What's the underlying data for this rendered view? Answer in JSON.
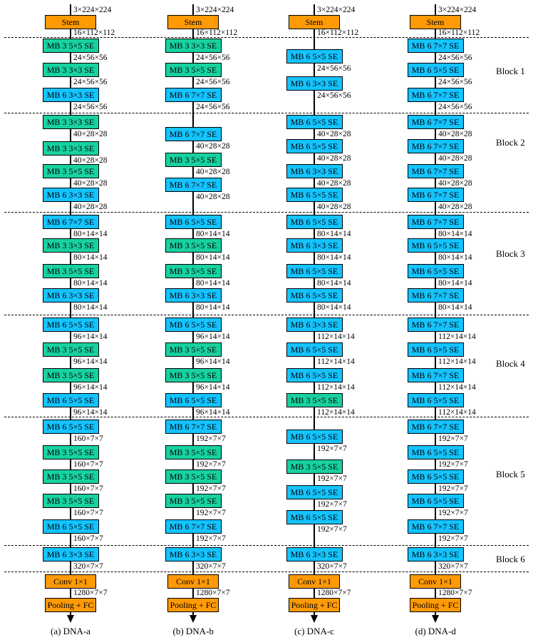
{
  "colors": {
    "stem": "#ff9a05",
    "mb3": "#18d1a0",
    "mb6": "#14c3ff"
  },
  "block_labels": [
    "Block 1",
    "Block 2",
    "Block 3",
    "Block 4",
    "Block 5",
    "Block 6"
  ],
  "columns": [
    {
      "id": "a",
      "caption": "(a) DNA-a",
      "input_dim": "3×224×224",
      "stem": {
        "label": "Stem",
        "dim": "16×112×112"
      },
      "blocks": [
        [
          {
            "label": "MB 3 5×5 SE",
            "dim": "24×56×56"
          },
          {
            "label": "MB 3 3×3 SE",
            "dim": "24×56×56"
          },
          {
            "label": "MB 6 3×3 SE",
            "dim": "24×56×56"
          }
        ],
        [
          {
            "label": "MB 3 3×3 SE",
            "dim": "40×28×28"
          },
          {
            "label": "MB 3 3×3 SE",
            "dim": "40×28×28"
          },
          {
            "label": "MB 3 5×5 SE",
            "dim": "40×28×28"
          },
          {
            "label": "MB 6 3×3 SE",
            "dim": "40×28×28"
          }
        ],
        [
          {
            "label": "MB 6 7×7 SE",
            "dim": "80×14×14"
          },
          {
            "label": "MB 3 3×3 SE",
            "dim": "80×14×14"
          },
          {
            "label": "MB 3 5×5 SE",
            "dim": "80×14×14"
          },
          {
            "label": "MB 6 3×3 SE",
            "dim": "80×14×14"
          }
        ],
        [
          {
            "label": "MB 6 5×5 SE",
            "dim": "96×14×14"
          },
          {
            "label": "MB 3 5×5 SE",
            "dim": "96×14×14"
          },
          {
            "label": "MB 3 5×5 SE",
            "dim": "96×14×14"
          },
          {
            "label": "MB 6 5×5 SE",
            "dim": "96×14×14"
          }
        ],
        [
          {
            "label": "MB 6 5×5 SE",
            "dim": "160×7×7"
          },
          {
            "label": "MB 3 5×5 SE",
            "dim": "160×7×7"
          },
          {
            "label": "MB 3 5×5 SE",
            "dim": "160×7×7"
          },
          {
            "label": "MB 3 5×5 SE",
            "dim": "160×7×7"
          },
          {
            "label": "MB 6 5×5 SE",
            "dim": "160×7×7"
          }
        ],
        [
          {
            "label": "MB 6 3×3 SE",
            "dim": "320×7×7"
          }
        ]
      ],
      "conv": {
        "label": "Conv 1×1",
        "dim": "1280×7×7"
      },
      "pool": {
        "label": "Pooling + FC"
      }
    },
    {
      "id": "b",
      "caption": "(b) DNA-b",
      "input_dim": "3×224×224",
      "stem": {
        "label": "Stem",
        "dim": "16×112×112"
      },
      "blocks": [
        [
          {
            "label": "MB 3 3×3 SE",
            "dim": "24×56×56"
          },
          {
            "label": "MB 3 5×5 SE",
            "dim": "24×56×56"
          },
          {
            "label": "MB 6 7×7 SE",
            "dim": "24×56×56"
          }
        ],
        [
          {
            "label": "MB 6 7×7 SE",
            "dim": "40×28×28"
          },
          {
            "label": "MB 3 5×5 SE",
            "dim": "40×28×28"
          },
          {
            "label": "MB 6 7×7 SE",
            "dim": "40×28×28"
          }
        ],
        [
          {
            "label": "MB 6 5×5 SE",
            "dim": "80×14×14"
          },
          {
            "label": "MB 3 5×5 SE",
            "dim": "80×14×14"
          },
          {
            "label": "MB 3 5×5 SE",
            "dim": "80×14×14"
          },
          {
            "label": "MB 6 3×3 SE",
            "dim": "80×14×14"
          }
        ],
        [
          {
            "label": "MB 6 5×5 SE",
            "dim": "96×14×14"
          },
          {
            "label": "MB 3 5×5 SE",
            "dim": "96×14×14"
          },
          {
            "label": "MB 3 5×5 SE",
            "dim": "96×14×14"
          },
          {
            "label": "MB 6 5×5 SE",
            "dim": "96×14×14"
          }
        ],
        [
          {
            "label": "MB 6 7×7 SE",
            "dim": "192×7×7"
          },
          {
            "label": "MB 3 5×5 SE",
            "dim": "192×7×7"
          },
          {
            "label": "MB 3 5×5 SE",
            "dim": "192×7×7"
          },
          {
            "label": "MB 3 5×5 SE",
            "dim": "192×7×7"
          },
          {
            "label": "MB 6 7×7 SE",
            "dim": "192×7×7"
          }
        ],
        [
          {
            "label": "MB 6 3×3 SE",
            "dim": "320×7×7"
          }
        ]
      ],
      "conv": {
        "label": "Conv 1×1",
        "dim": "1280×7×7"
      },
      "pool": {
        "label": "Pooling + FC"
      }
    },
    {
      "id": "c",
      "caption": "(c) DNA-c",
      "input_dim": "3×224×224",
      "stem": {
        "label": "Stem",
        "dim": "16×112×112"
      },
      "blocks": [
        [
          {
            "label": "MB 6 5×5 SE",
            "dim": "24×56×56"
          },
          {
            "label": "MB 6 3×3 SE",
            "dim": "24×56×56"
          }
        ],
        [
          {
            "label": "MB 6 5×5 SE",
            "dim": "40×28×28"
          },
          {
            "label": "MB 6 5×5 SE",
            "dim": "40×28×28"
          },
          {
            "label": "MB 6 3×3 SE",
            "dim": "40×28×28"
          },
          {
            "label": "MB 6 5×5 SE",
            "dim": "40×28×28"
          }
        ],
        [
          {
            "label": "MB 6 5×5 SE",
            "dim": "80×14×14"
          },
          {
            "label": "MB 6 3×3 SE",
            "dim": "80×14×14"
          },
          {
            "label": "MB 6 5×5 SE",
            "dim": "80×14×14"
          },
          {
            "label": "MB 6 5×5 SE",
            "dim": "80×14×14"
          }
        ],
        [
          {
            "label": "MB 6 3×3 SE",
            "dim": "112×14×14"
          },
          {
            "label": "MB 6 5×5 SE",
            "dim": "112×14×14"
          },
          {
            "label": "MB 6 5×5 SE",
            "dim": "112×14×14"
          },
          {
            "label": "MB 3 5×5 SE",
            "dim": "112×14×14"
          }
        ],
        [
          {
            "label": "MB 6 5×5 SE",
            "dim": "192×7×7"
          },
          {
            "label": "MB 3 5×5 SE",
            "dim": "192×7×7"
          },
          {
            "label": "MB 6 5×5 SE",
            "dim": "192×7×7"
          },
          {
            "label": "MB 6 5×5 SE",
            "dim": "192×7×7"
          }
        ],
        [
          {
            "label": "MB 6 3×3 SE",
            "dim": "320×7×7"
          }
        ]
      ],
      "conv": {
        "label": "Conv 1×1",
        "dim": "1280×7×7"
      },
      "pool": {
        "label": "Pooling + FC"
      }
    },
    {
      "id": "d",
      "caption": "(d) DNA-d",
      "input_dim": "3×224×224",
      "stem": {
        "label": "Stem",
        "dim": "16×112×112"
      },
      "blocks": [
        [
          {
            "label": "MB 6 7×7 SE",
            "dim": "24×56×56"
          },
          {
            "label": "MB 6 5×5 SE",
            "dim": "24×56×56"
          },
          {
            "label": "MB 6 7×7 SE",
            "dim": "24×56×56"
          }
        ],
        [
          {
            "label": "MB 6 7×7 SE",
            "dim": "40×28×28"
          },
          {
            "label": "MB 6 7×7 SE",
            "dim": "40×28×28"
          },
          {
            "label": "MB 6 7×7 SE",
            "dim": "40×28×28"
          },
          {
            "label": "MB 6 7×7 SE",
            "dim": "40×28×28"
          }
        ],
        [
          {
            "label": "MB 6 7×7 SE",
            "dim": "80×14×14"
          },
          {
            "label": "MB 6 5×5 SE",
            "dim": "80×14×14"
          },
          {
            "label": "MB 6 5×5 SE",
            "dim": "80×14×14"
          },
          {
            "label": "MB 6 7×7 SE",
            "dim": "80×14×14"
          }
        ],
        [
          {
            "label": "MB 6 7×7 SE",
            "dim": "112×14×14"
          },
          {
            "label": "MB 6 5×5 SE",
            "dim": "112×14×14"
          },
          {
            "label": "MB 6 7×7 SE",
            "dim": "112×14×14"
          },
          {
            "label": "MB 6 5×5 SE",
            "dim": "112×14×14"
          }
        ],
        [
          {
            "label": "MB 6 7×7 SE",
            "dim": "192×7×7"
          },
          {
            "label": "MB 6 5×5 SE",
            "dim": "192×7×7"
          },
          {
            "label": "MB 6 5×5 SE",
            "dim": "192×7×7"
          },
          {
            "label": "MB 6 5×5 SE",
            "dim": "192×7×7"
          },
          {
            "label": "MB 6 7×7 SE",
            "dim": "192×7×7"
          }
        ],
        [
          {
            "label": "MB 6 3×3 SE",
            "dim": "320×7×7"
          }
        ]
      ],
      "conv": {
        "label": "Conv 1×1",
        "dim": "1280×7×7"
      },
      "pool": {
        "label": "Pooling + FC"
      }
    }
  ]
}
